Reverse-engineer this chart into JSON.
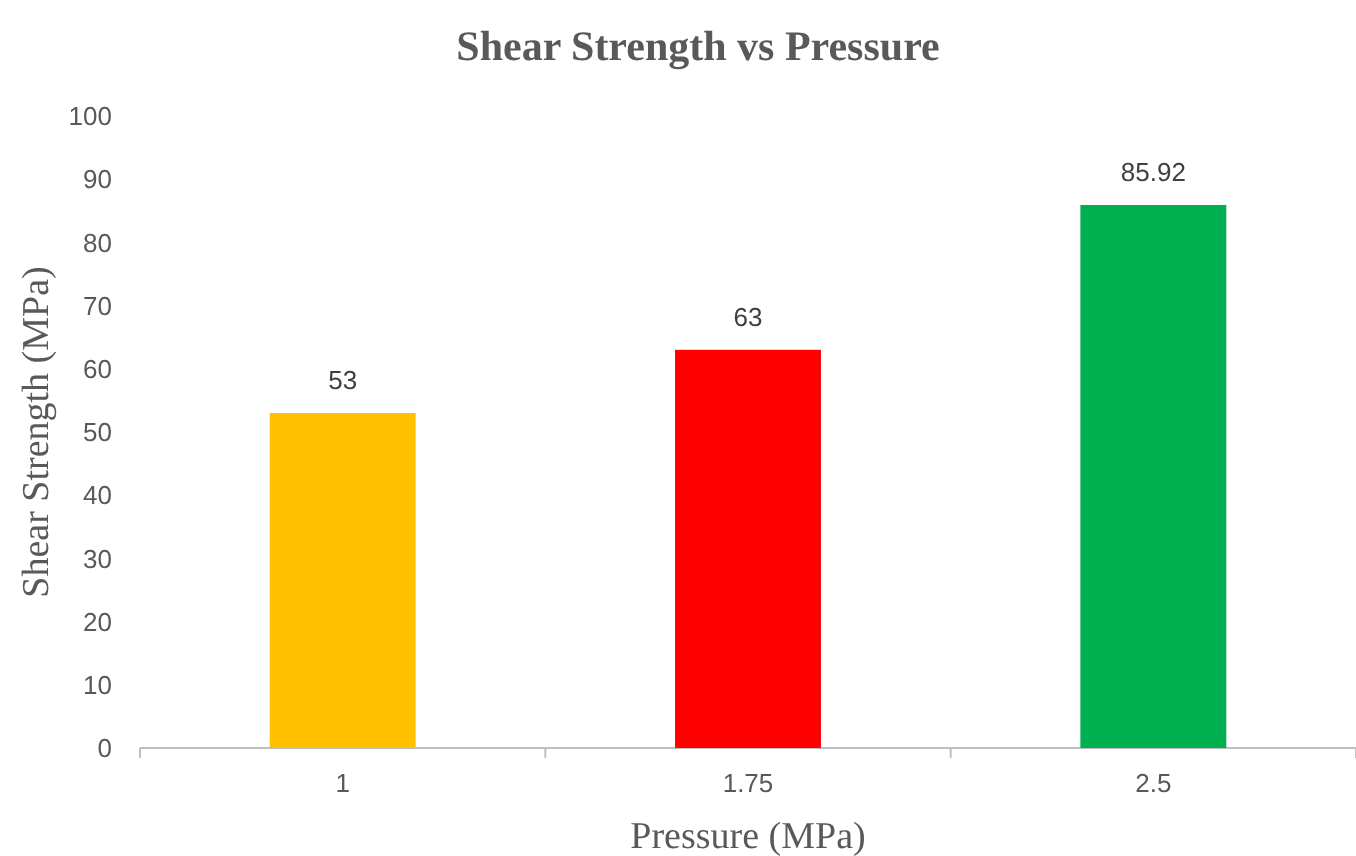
{
  "chart_data": {
    "type": "bar",
    "title": "Shear Strength vs Pressure",
    "xlabel": "Pressure (MPa)",
    "ylabel": "Shear Strength (MPa)",
    "categories": [
      "1",
      "1.75",
      "2.5"
    ],
    "values": [
      53,
      63,
      85.92
    ],
    "colors": [
      "#ffc000",
      "#ff0000",
      "#00b050"
    ],
    "ylim": [
      0,
      100
    ],
    "yticks": [
      0,
      10,
      20,
      30,
      40,
      50,
      60,
      70,
      80,
      90,
      100
    ],
    "grid": false,
    "data_labels": true
  }
}
